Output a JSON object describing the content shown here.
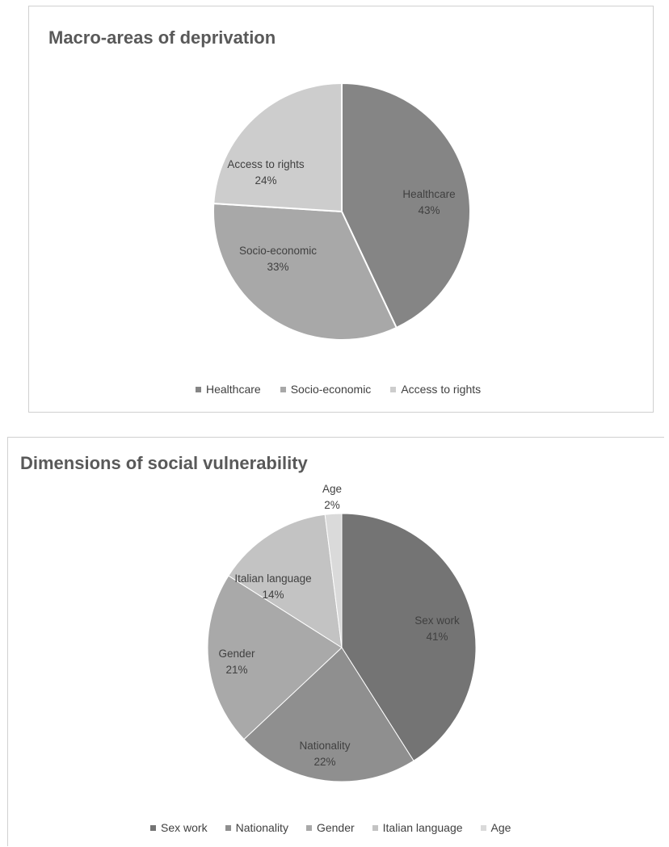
{
  "chart_data": [
    {
      "type": "pie",
      "title": "Macro-areas of deprivation",
      "categories": [
        "Healthcare",
        "Socio-economic",
        "Access to rights"
      ],
      "values": [
        43,
        33,
        24
      ],
      "value_labels": [
        "43%",
        "33%",
        "24%"
      ],
      "colors": [
        "#858585",
        "#a8a8a8",
        "#cdcdcd"
      ],
      "legend_position": "bottom",
      "legend": [
        "Healthcare",
        "Socio-economic",
        "Access to rights"
      ]
    },
    {
      "type": "pie",
      "title": "Dimensions of social vulnerability",
      "categories": [
        "Sex work",
        "Nationality",
        "Gender",
        "Italian language",
        "Age"
      ],
      "values": [
        41,
        22,
        21,
        14,
        2
      ],
      "value_labels": [
        "41%",
        "22%",
        "21%",
        "14%",
        "2%"
      ],
      "colors": [
        "#747474",
        "#8f8f8f",
        "#a9a9a9",
        "#c3c3c3",
        "#dadada"
      ],
      "legend_position": "bottom",
      "legend": [
        "Sex work",
        "Nationality",
        "Gender",
        "Italian language",
        "Age"
      ]
    }
  ]
}
